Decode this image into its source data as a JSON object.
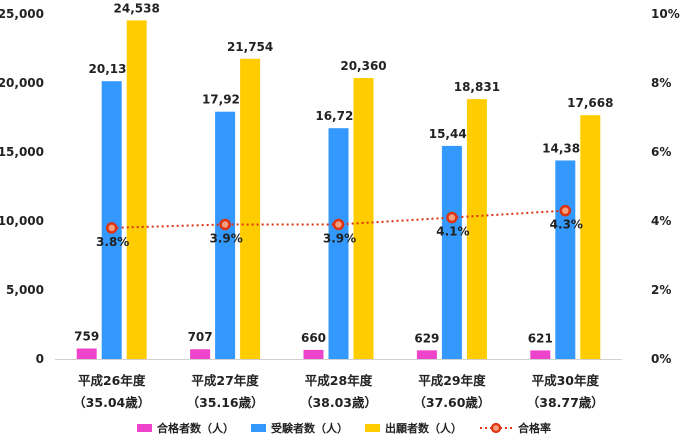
{
  "chart_data": {
    "type": "bar",
    "categories": [
      "平成26年度",
      "平成27年度",
      "平成28年度",
      "平成29年度",
      "平成30年度"
    ],
    "category_sublabels": [
      "（35.04歳）",
      "（35.16歳）",
      "（38.03歳）",
      "（37.60歳）",
      "（38.77歳）"
    ],
    "series": [
      {
        "name": "合格者数（人）",
        "color": "#ee44cc",
        "values": [
          759,
          707,
          660,
          629,
          621
        ],
        "labels": [
          "759",
          "707",
          "660",
          "629",
          "621"
        ]
      },
      {
        "name": "受験者数（人）",
        "color": "#3399ff",
        "values": [
          20130,
          17920,
          16725,
          15440,
          14387
        ],
        "labels": [
          "20,130",
          "17,920",
          "16,725",
          "15,440",
          "14,387"
        ]
      },
      {
        "name": "出願者数（人）",
        "color": "#ffcc00",
        "values": [
          24538,
          21754,
          20360,
          18831,
          17668
        ],
        "labels": [
          "24,538",
          "21,754",
          "20,360",
          "18,831",
          "17,668"
        ]
      }
    ],
    "line_series": {
      "name": "合格率",
      "axis": "right",
      "line_color": "#dd3311",
      "marker_fill": "#f4a080",
      "values": [
        3.8,
        3.9,
        3.9,
        4.1,
        4.3
      ],
      "labels": [
        "3.8%",
        "3.9%",
        "3.9%",
        "4.1%",
        "4.3%"
      ]
    },
    "ylim": [
      0,
      25000
    ],
    "y_ticks": [
      "0",
      "5,000",
      "10,000",
      "15,000",
      "20,000",
      "25,000"
    ],
    "y2lim": [
      0,
      10
    ],
    "y2_ticks": [
      "0%",
      "2%",
      "4%",
      "6%",
      "8%",
      "10%"
    ],
    "grid": false,
    "legend_position": "bottom",
    "title": "",
    "xlabel": "",
    "ylabel": ""
  }
}
